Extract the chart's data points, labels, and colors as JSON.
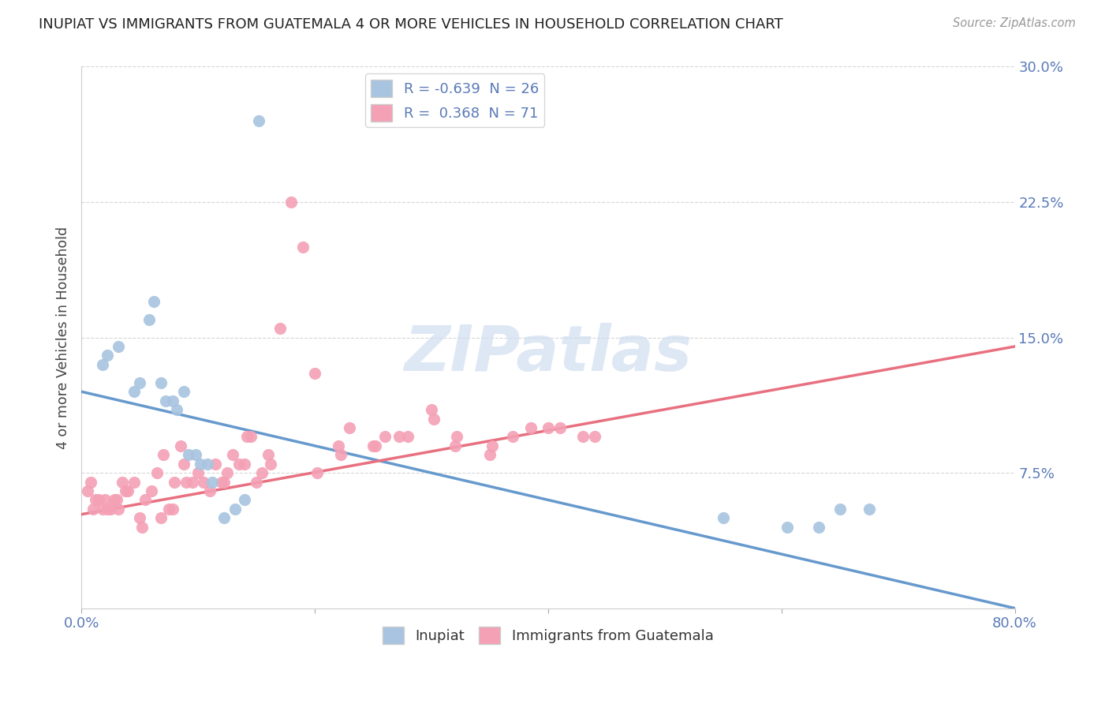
{
  "title": "INUPIAT VS IMMIGRANTS FROM GUATEMALA 4 OR MORE VEHICLES IN HOUSEHOLD CORRELATION CHART",
  "source": "Source: ZipAtlas.com",
  "ylabel": "4 or more Vehicles in Household",
  "xlim": [
    0.0,
    80.0
  ],
  "ylim": [
    0.0,
    30.0
  ],
  "xticks": [
    0.0,
    20.0,
    40.0,
    60.0,
    80.0
  ],
  "yticks": [
    7.5,
    15.0,
    22.5,
    30.0
  ],
  "legend1_label": "R = -0.639  N = 26",
  "legend2_label": "R =  0.368  N = 71",
  "legend_bottom_label1": "Inupiat",
  "legend_bottom_label2": "Immigrants from Guatemala",
  "inupiat_color": "#a8c4e0",
  "guatemala_color": "#f4a0b5",
  "tick_color": "#5a7ab8",
  "watermark_color": "#ccdcef",
  "inupiat_x": [
    1.8,
    2.2,
    3.2,
    4.5,
    5.0,
    5.8,
    6.2,
    6.8,
    7.2,
    7.8,
    8.2,
    8.8,
    9.2,
    9.8,
    10.2,
    10.8,
    11.2,
    12.2,
    13.2,
    14.0,
    15.2,
    55.0,
    60.5,
    63.2,
    65.0,
    67.5
  ],
  "inupiat_y": [
    13.5,
    14.0,
    14.5,
    12.0,
    12.5,
    16.0,
    17.0,
    12.5,
    11.5,
    11.5,
    11.0,
    12.0,
    8.5,
    8.5,
    8.0,
    8.0,
    7.0,
    5.0,
    5.5,
    6.0,
    27.0,
    5.0,
    4.5,
    4.5,
    5.5,
    5.5
  ],
  "guatemala_x": [
    0.5,
    0.8,
    1.0,
    1.2,
    1.5,
    1.8,
    2.0,
    2.2,
    2.5,
    2.8,
    3.0,
    3.2,
    3.5,
    3.8,
    4.0,
    4.5,
    5.0,
    5.5,
    6.0,
    6.5,
    7.0,
    7.5,
    8.0,
    8.5,
    9.0,
    9.5,
    10.0,
    10.5,
    11.0,
    11.5,
    12.0,
    12.5,
    13.0,
    13.5,
    14.0,
    14.5,
    15.0,
    15.5,
    16.0,
    17.0,
    18.0,
    19.0,
    20.0,
    22.0,
    23.0,
    25.0,
    26.0,
    28.0,
    30.0,
    32.0,
    35.0,
    37.0,
    40.0,
    43.0,
    5.2,
    6.8,
    7.8,
    8.8,
    12.2,
    14.2,
    16.2,
    20.2,
    22.2,
    25.2,
    27.2,
    30.2,
    32.2,
    35.2,
    38.5,
    41.0,
    44.0
  ],
  "guatemala_y": [
    6.5,
    7.0,
    5.5,
    6.0,
    6.0,
    5.5,
    6.0,
    5.5,
    5.5,
    6.0,
    6.0,
    5.5,
    7.0,
    6.5,
    6.5,
    7.0,
    5.0,
    6.0,
    6.5,
    7.5,
    8.5,
    5.5,
    7.0,
    9.0,
    7.0,
    7.0,
    7.5,
    7.0,
    6.5,
    8.0,
    7.0,
    7.5,
    8.5,
    8.0,
    8.0,
    9.5,
    7.0,
    7.5,
    8.5,
    15.5,
    22.5,
    20.0,
    13.0,
    9.0,
    10.0,
    9.0,
    9.5,
    9.5,
    11.0,
    9.0,
    8.5,
    9.5,
    10.0,
    9.5,
    4.5,
    5.0,
    5.5,
    8.0,
    7.0,
    9.5,
    8.0,
    7.5,
    8.5,
    9.0,
    9.5,
    10.5,
    9.5,
    9.0,
    10.0,
    10.0,
    9.5
  ],
  "inupiat_line_start_y": 12.0,
  "inupiat_line_end_y": 0.0,
  "guatemala_line_start_y": 5.2,
  "guatemala_line_end_y": 14.5
}
